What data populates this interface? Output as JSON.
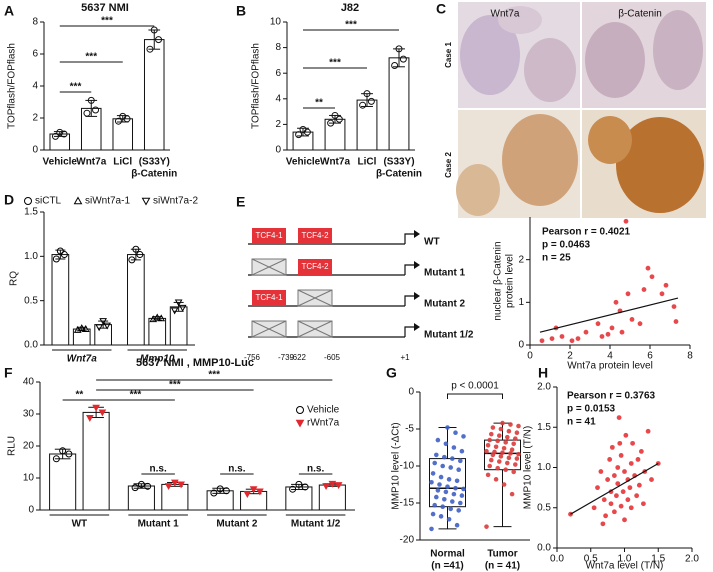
{
  "panel_labels": [
    "A",
    "B",
    "C",
    "D",
    "E",
    "F",
    "G",
    "H"
  ],
  "images": {
    "columns": [
      "Wnt7a",
      "β-Catenin"
    ],
    "rows": [
      "Case 1",
      "Case 2"
    ]
  },
  "diagram": {
    "sites": [
      "TCF4-1",
      "TCF4-2"
    ],
    "constructs": [
      {
        "label": "WT",
        "intact": [
          true,
          true
        ]
      },
      {
        "label": "Mutant 1",
        "intact": [
          false,
          true
        ]
      },
      {
        "label": "Mutant 2",
        "intact": [
          true,
          false
        ]
      },
      {
        "label": "Mutant 1/2",
        "intact": [
          false,
          false
        ]
      }
    ],
    "positions": [
      "-756",
      "-739",
      "-622",
      "-605",
      "+1"
    ]
  },
  "chart_data": [
    {
      "type": "bar",
      "title": "5637 NMI",
      "ylabel": "TOPflash/FOPflash",
      "categories": [
        "Vehicle",
        "Wnt7a",
        "LiCl",
        [
          "(S33Y)",
          "β-Catenin"
        ]
      ],
      "values": [
        1.0,
        2.6,
        1.95,
        6.9
      ],
      "errors": [
        0.15,
        0.5,
        0.2,
        0.6
      ],
      "points": [
        [
          0.85,
          1.1,
          1.0
        ],
        [
          2.3,
          3.1,
          2.5
        ],
        [
          1.8,
          2.1,
          1.95
        ],
        [
          6.3,
          7.5,
          6.9
        ]
      ],
      "color": "#ffffff",
      "significance": [
        {
          "from": 0,
          "to": 1,
          "label": "***"
        },
        {
          "from": 0,
          "to": 2,
          "label": "***"
        },
        {
          "from": 0,
          "to": 3,
          "label": "***"
        }
      ],
      "ylim": [
        0,
        8
      ],
      "yticks": [
        0,
        2,
        4,
        6,
        8
      ]
    },
    {
      "type": "bar",
      "title": "J82",
      "ylabel": "TOPflash/FOPflash",
      "categories": [
        "Vehicle",
        "Wnt7a",
        "LiCl",
        [
          "(S33Y)",
          "β-Catenin"
        ]
      ],
      "values": [
        1.4,
        2.4,
        3.9,
        7.2
      ],
      "errors": [
        0.3,
        0.3,
        0.5,
        0.7
      ],
      "points": [
        [
          1.2,
          1.6,
          1.4
        ],
        [
          2.1,
          2.7,
          2.4
        ],
        [
          3.5,
          4.4,
          3.8
        ],
        [
          6.6,
          7.9,
          7.1
        ]
      ],
      "color": "#ffffff",
      "significance": [
        {
          "from": 0,
          "to": 1,
          "label": "**"
        },
        {
          "from": 0,
          "to": 2,
          "label": "***"
        },
        {
          "from": 0,
          "to": 3,
          "label": "***"
        }
      ],
      "ylim": [
        0,
        10
      ],
      "yticks": [
        0,
        2,
        4,
        6,
        8,
        10
      ]
    },
    {
      "type": "scatter",
      "ylabel": [
        "nuclear β-Catenin",
        "protein level"
      ],
      "xlabel": "Wnt7a protein level",
      "annotation": [
        "Pearson r = 0.4021",
        "p = 0.0463",
        "n = 25"
      ],
      "x": [
        4.8,
        0.6,
        1.1,
        1.3,
        1.6,
        2.1,
        2.4,
        2.8,
        3.4,
        3.6,
        3.9,
        4.1,
        4.3,
        4.5,
        4.6,
        4.9,
        5.1,
        5.5,
        5.7,
        5.9,
        6.1,
        6.6,
        6.8,
        7.2,
        7.3
      ],
      "y": [
        2.9,
        0.1,
        0.15,
        0.4,
        0.2,
        0.1,
        0.15,
        0.3,
        0.5,
        0.2,
        0.25,
        0.4,
        1.0,
        0.8,
        0.3,
        1.2,
        0.6,
        0.5,
        1.3,
        1.8,
        1.6,
        1.2,
        1.4,
        0.9,
        0.55
      ],
      "color": "#e8474c",
      "fit_x": [
        0.5,
        7.4
      ],
      "fit_y": [
        0.3,
        1.1
      ],
      "xlim": [
        0,
        8
      ],
      "xticks": [
        0,
        2,
        4,
        6,
        8
      ],
      "ylim": [
        0,
        3
      ],
      "yticks": [
        0,
        1,
        2
      ]
    },
    {
      "type": "grouped_bar",
      "ylabel": "RQ",
      "categories": [
        "Wnt7a",
        "Mmp10"
      ],
      "series": [
        {
          "name": "siCTL",
          "marker": "circle",
          "marker_filled": false,
          "color": "#ffffff",
          "marker_color": "#000000",
          "values": [
            1.02,
            1.02
          ],
          "errors": [
            0.05,
            0.06
          ],
          "points": [
            [
              0.97,
              1.06,
              1.02
            ],
            [
              0.96,
              1.08,
              1.02
            ]
          ]
        },
        {
          "name": "siWnt7a-1",
          "marker": "triangle-up",
          "marker_filled": false,
          "color": "#ffffff",
          "marker_color": "#000000",
          "values": [
            0.18,
            0.3
          ],
          "errors": [
            0.02,
            0.02
          ],
          "points": [
            [
              0.17,
              0.19,
              0.18
            ],
            [
              0.29,
              0.31,
              0.3
            ]
          ]
        },
        {
          "name": "siWnt7a-2",
          "marker": "triangle-down",
          "marker_filled": false,
          "color": "#ffffff",
          "marker_color": "#000000",
          "values": [
            0.23,
            0.43
          ],
          "errors": [
            0.04,
            0.05
          ],
          "points": [
            [
              0.2,
              0.27,
              0.22
            ],
            [
              0.39,
              0.48,
              0.42
            ]
          ]
        }
      ],
      "ylim": [
        0,
        1.5
      ],
      "yticks": [
        {
          "value": 0,
          "label": "0.0"
        },
        0.5,
        {
          "value": 1,
          "label": "1.0"
        },
        1.5
      ]
    },
    {
      "type": "grouped_bar",
      "title": "5637 NMI , MMP10-Luc",
      "ylabel": "RLU",
      "categories": [
        "WT",
        "Mutant 1",
        "Mutant 2",
        "Mutant 1/2"
      ],
      "series": [
        {
          "name": "Vehicle",
          "marker": "circle",
          "marker_filled": false,
          "color": "#ffffff",
          "marker_color": "#000000",
          "values": [
            17.5,
            7.5,
            6.0,
            7.2
          ],
          "errors": [
            1.5,
            0.7,
            0.8,
            0.8
          ],
          "points": [
            [
              16,
              18.5,
              17.5
            ],
            [
              7,
              8,
              7.4
            ],
            [
              5.3,
              6.6,
              6
            ],
            [
              6.5,
              8,
              7.2
            ]
          ]
        },
        {
          "name": "rWnt7a",
          "marker": "triangle-down",
          "marker_filled": true,
          "color": "#ffffff",
          "marker_color": "#e0292f",
          "values": [
            30.5,
            8.0,
            5.8,
            7.8
          ],
          "errors": [
            1.6,
            0.6,
            0.7,
            0.4
          ],
          "points": [
            [
              28.8,
              32,
              30.5
            ],
            [
              7.5,
              8.6,
              8
            ],
            [
              5,
              6.5,
              5.8
            ],
            [
              7.5,
              8.2,
              7.8
            ]
          ]
        }
      ],
      "significance": [
        {
          "from": [
            0,
            0
          ],
          "to": [
            0,
            1
          ],
          "label": "**"
        },
        {
          "from": [
            0,
            1
          ],
          "to": [
            1,
            1
          ],
          "label": "***"
        },
        {
          "from": [
            0,
            1
          ],
          "to": [
            2,
            1
          ],
          "label": "***"
        },
        {
          "from": [
            0,
            1
          ],
          "to": [
            3,
            1
          ],
          "label": "***"
        },
        {
          "from": [
            1,
            0
          ],
          "to": [
            1,
            1
          ],
          "label": "n.s."
        },
        {
          "from": [
            2,
            0
          ],
          "to": [
            2,
            1
          ],
          "label": "n.s."
        },
        {
          "from": [
            3,
            0
          ],
          "to": [
            3,
            1
          ],
          "label": "n.s."
        }
      ],
      "ylim": [
        0,
        40
      ],
      "yticks": [
        0,
        10,
        20,
        30,
        40
      ]
    },
    {
      "type": "box",
      "ylabel": "MMP10 level (-ΔCt)",
      "categories": [
        [
          "Normal",
          "(n =41)"
        ],
        [
          "Tumor",
          "(n = 41)"
        ]
      ],
      "boxes": [
        {
          "min": -18.5,
          "q1": -15.5,
          "median": -13,
          "q3": -9,
          "max": -4.8
        },
        {
          "min": -18.2,
          "q1": -10.5,
          "median": -8.3,
          "q3": -6.5,
          "max": -4.2
        }
      ],
      "points": [
        [
          -18.5,
          -18,
          -17.2,
          -16.8,
          -16.5,
          -16,
          -15.8,
          -15.5,
          -15.3,
          -15,
          -14.8,
          -14.5,
          -14.2,
          -14,
          -13.8,
          -13.5,
          -13.3,
          -13.1,
          -13,
          -12.8,
          -12.5,
          -12.2,
          -12,
          -11.8,
          -11.5,
          -11,
          -10.5,
          -10.2,
          -10,
          -9.6,
          -9.3,
          -9,
          -8.8,
          -8.5,
          -8,
          -7.5,
          -7,
          -6.5,
          -6,
          -5.5,
          -4.8
        ],
        [
          -18.2,
          -13.8,
          -12.5,
          -11.8,
          -11.2,
          -10.8,
          -10.5,
          -10.3,
          -10,
          -9.8,
          -9.6,
          -9.4,
          -9.2,
          -9,
          -8.9,
          -8.7,
          -8.5,
          -8.4,
          -8.3,
          -8.2,
          -8.1,
          -8,
          -7.8,
          -7.6,
          -7.4,
          -7.2,
          -7,
          -6.8,
          -6.6,
          -6.5,
          -6.3,
          -6.1,
          -5.9,
          -5.7,
          -5.5,
          -5.3,
          -5,
          -4.8,
          -4.6,
          -4.4,
          -4.2
        ]
      ],
      "colors": [
        "#3f5fc4",
        "#dc3b3b"
      ],
      "annotation": "p < 0.0001",
      "ylim": [
        -20,
        0
      ],
      "yticks": [
        -20,
        -15,
        -10,
        -5,
        0
      ]
    },
    {
      "type": "scatter",
      "ylabel": "MMP10 level (T/N)",
      "xlabel": "Wnt7a level (T/N)",
      "annotation": [
        "Pearson r = 0.3763",
        "p = 0.0153",
        "n = 41"
      ],
      "x": [
        0.2,
        0.55,
        0.6,
        0.65,
        0.7,
        0.72,
        0.75,
        0.78,
        0.8,
        0.8,
        0.82,
        0.85,
        0.85,
        0.88,
        0.9,
        0.9,
        0.92,
        0.95,
        0.95,
        0.98,
        1.0,
        1.0,
        1.02,
        1.05,
        1.05,
        1.08,
        1.1,
        1.1,
        1.12,
        1.15,
        1.18,
        1.2,
        1.22,
        1.25,
        1.28,
        1.3,
        1.35,
        1.4,
        0.68,
        0.93,
        1.5
      ],
      "y": [
        0.42,
        0.5,
        0.75,
        0.95,
        0.6,
        0.4,
        0.85,
        1.1,
        0.55,
        0.7,
        1.25,
        0.45,
        0.9,
        0.65,
        1.0,
        0.8,
        1.62,
        0.52,
        1.15,
        0.7,
        0.35,
        0.95,
        1.4,
        0.6,
        0.85,
        0.75,
        1.05,
        0.5,
        1.3,
        0.9,
        0.65,
        1.1,
        0.78,
        1.2,
        0.55,
        0.95,
        1.45,
        0.85,
        0.3,
        1.3,
        1.05
      ],
      "color": "#e8474c",
      "fit_x": [
        0.2,
        1.5
      ],
      "fit_y": [
        0.42,
        1.05
      ],
      "xlim": [
        0,
        2
      ],
      "xticks": [
        {
          "value": 0,
          "label": "0.0"
        },
        0.5,
        {
          "value": 1,
          "label": "1.0"
        },
        1.5,
        {
          "value": 2,
          "label": "2.0"
        }
      ],
      "ylim": [
        0,
        2
      ],
      "yticks": [
        {
          "value": 0,
          "label": "0.0"
        },
        0.5,
        {
          "value": 1,
          "label": "1.0"
        },
        1.5,
        {
          "value": 2,
          "label": "2.0"
        }
      ]
    }
  ]
}
